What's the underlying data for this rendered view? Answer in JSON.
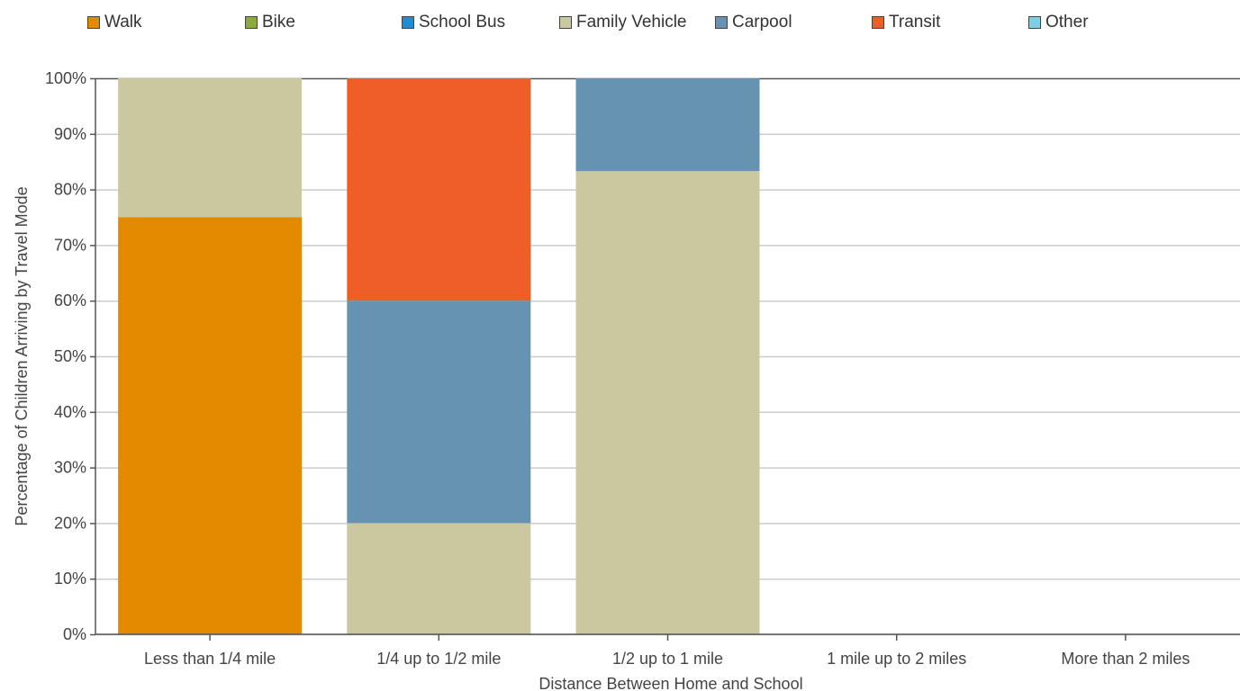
{
  "chart_data": {
    "type": "bar",
    "stacked": true,
    "categories": [
      "Less than 1/4 mile",
      "1/4 up to 1/2 mile",
      "1/2 up to 1 mile",
      "1 mile up to 2 miles",
      "More than 2 miles"
    ],
    "series": [
      {
        "name": "Walk",
        "color": "#E38A00",
        "values": [
          75,
          0,
          0,
          0,
          0
        ]
      },
      {
        "name": "Bike",
        "color": "#8DAA3E",
        "values": [
          0,
          0,
          0,
          0,
          0
        ]
      },
      {
        "name": "School Bus",
        "color": "#1F8DD6",
        "values": [
          0,
          0,
          0,
          0,
          0
        ]
      },
      {
        "name": "Family Vehicle",
        "color": "#CBC89F",
        "values": [
          25,
          20,
          83.3,
          0,
          0
        ]
      },
      {
        "name": "Carpool",
        "color": "#6693B1",
        "values": [
          0,
          40,
          16.7,
          0,
          0
        ]
      },
      {
        "name": "Transit",
        "color": "#EF5E28",
        "values": [
          0,
          40,
          0,
          0,
          0
        ]
      },
      {
        "name": "Other",
        "color": "#7ECFE0",
        "values": [
          0,
          0,
          0,
          0,
          0
        ]
      }
    ],
    "xlabel": "Distance Between Home and School",
    "ylabel": "Percentage of Children Arriving by Travel Mode",
    "ylim": [
      0,
      100
    ],
    "yticks": [
      "0%",
      "10%",
      "20%",
      "30%",
      "40%",
      "50%",
      "60%",
      "70%",
      "80%",
      "90%",
      "100%"
    ],
    "grid": true,
    "legend_position": "top"
  }
}
